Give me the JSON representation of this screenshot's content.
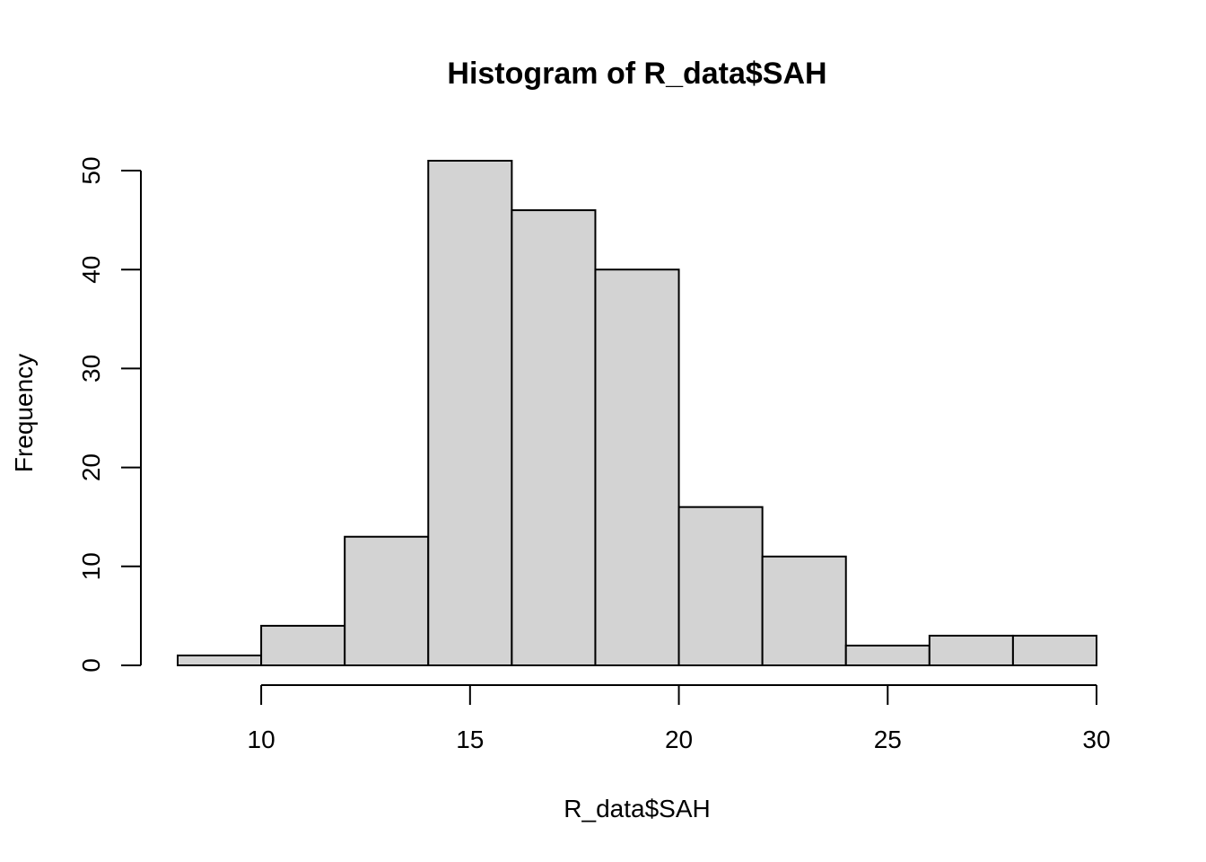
{
  "chart_data": {
    "type": "bar",
    "title": "Histogram of R_data$SAH",
    "xlabel": "R_data$SAH",
    "ylabel": "Frequency",
    "bins": [
      {
        "start": 8,
        "end": 10,
        "count": 1
      },
      {
        "start": 10,
        "end": 12,
        "count": 4
      },
      {
        "start": 12,
        "end": 14,
        "count": 13
      },
      {
        "start": 14,
        "end": 16,
        "count": 51
      },
      {
        "start": 16,
        "end": 18,
        "count": 46
      },
      {
        "start": 18,
        "end": 20,
        "count": 40
      },
      {
        "start": 20,
        "end": 22,
        "count": 16
      },
      {
        "start": 22,
        "end": 24,
        "count": 11
      },
      {
        "start": 24,
        "end": 26,
        "count": 2
      },
      {
        "start": 26,
        "end": 28,
        "count": 3
      },
      {
        "start": 28,
        "end": 30,
        "count": 3
      }
    ],
    "x_ticks": [
      "10",
      "15",
      "20",
      "25",
      "30"
    ],
    "y_ticks": [
      "0",
      "10",
      "20",
      "30",
      "40",
      "50"
    ],
    "x_tick_values": [
      10,
      15,
      20,
      25,
      30
    ],
    "y_tick_values": [
      0,
      10,
      20,
      30,
      40,
      50
    ],
    "xlim": [
      8,
      30
    ],
    "ylim": [
      0,
      51
    ],
    "bar_color": "#d3d3d3",
    "border_color": "#000000",
    "grid": false
  }
}
